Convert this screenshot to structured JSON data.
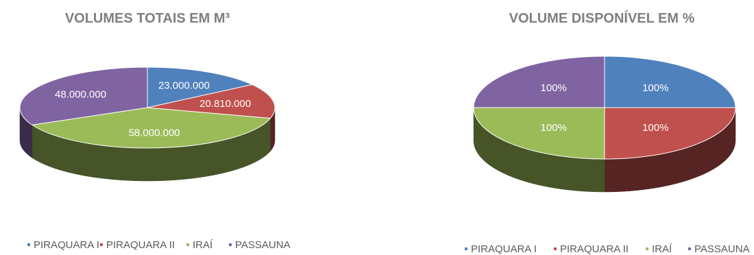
{
  "chart_data": [
    {
      "type": "pie",
      "title": "VOLUMES TOTAIS EM M³",
      "categories": [
        "PIRAQUARA I",
        "PIRAQUARA II",
        "IRAÍ",
        "PASSAUNA"
      ],
      "values": [
        23000000,
        20810000,
        58000000,
        48000000
      ],
      "data_labels": [
        "23.000.000",
        "20.810.000",
        "58.000.000",
        "48.000.000"
      ],
      "style": "3d",
      "legend_position": "bottom",
      "colors": [
        "#4f81bd",
        "#c0504d",
        "#9bbb59",
        "#8064a2"
      ]
    },
    {
      "type": "pie",
      "title": "VOLUME DISPONÍVEL EM %",
      "categories": [
        "PIRAQUARA I",
        "PIRAQUARA II",
        "IRAÍ",
        "PASSAUNA"
      ],
      "values": [
        100,
        100,
        100,
        100
      ],
      "data_labels": [
        "100%",
        "100%",
        "100%",
        "100%"
      ],
      "style": "3d",
      "legend_position": "bottom",
      "colors": [
        "#4f81bd",
        "#c0504d",
        "#9bbb59",
        "#8064a2"
      ]
    }
  ]
}
